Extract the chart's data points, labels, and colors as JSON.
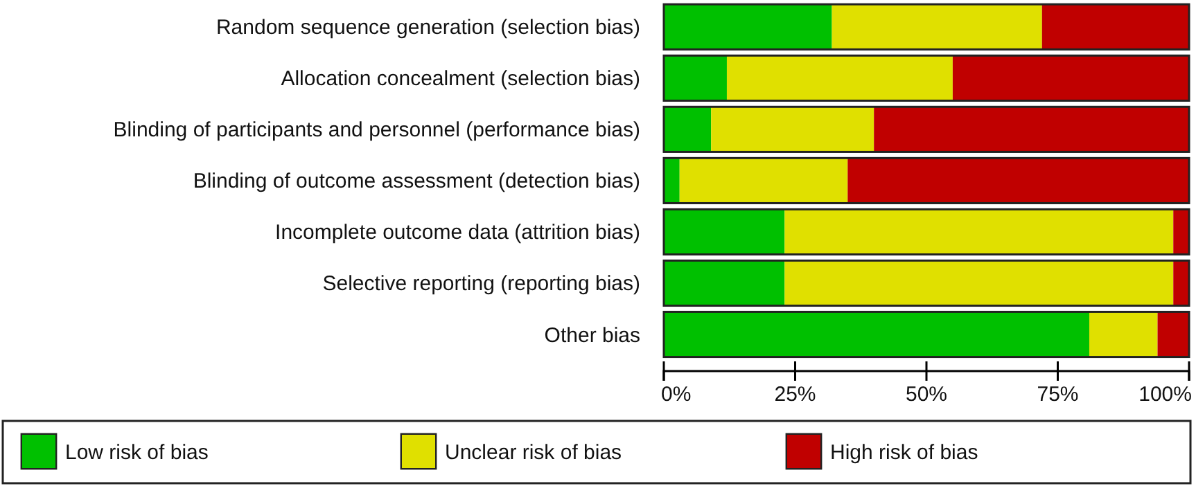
{
  "chart_data": {
    "type": "bar",
    "orientation": "horizontal",
    "stacked": true,
    "legend": "bottom",
    "categories": [
      "Random sequence generation (selection bias)",
      "Allocation concealment (selection bias)",
      "Blinding of participants and personnel (performance bias)",
      "Blinding of outcome assessment (detection bias)",
      "Incomplete outcome data (attrition bias)",
      "Selective reporting (reporting bias)",
      "Other bias"
    ],
    "series": [
      {
        "name": "Low risk of bias",
        "color": "#00c000",
        "values": [
          32,
          12,
          9,
          3,
          23,
          23,
          81
        ]
      },
      {
        "name": "Unclear risk of bias",
        "color": "#e0e000",
        "values": [
          40,
          43,
          31,
          32,
          74,
          74,
          13
        ]
      },
      {
        "name": "High risk of bias",
        "color": "#c00000",
        "values": [
          28,
          45,
          60,
          65,
          3,
          3,
          6
        ]
      }
    ],
    "xlim": [
      0,
      100
    ],
    "xticks": [
      {
        "value": 0,
        "label": "0%"
      },
      {
        "value": 25,
        "label": "25%"
      },
      {
        "value": 50,
        "label": "50%"
      },
      {
        "value": 75,
        "label": "75%"
      },
      {
        "value": 100,
        "label": "100%"
      }
    ]
  }
}
